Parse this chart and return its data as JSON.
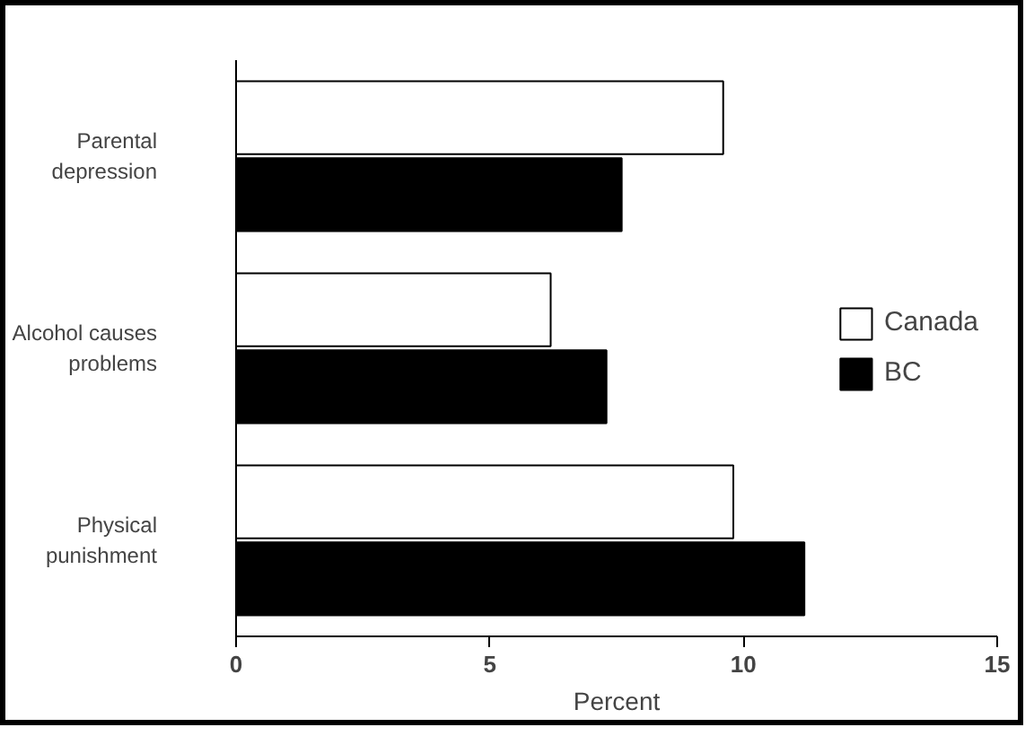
{
  "chart_data": {
    "type": "bar",
    "orientation": "horizontal",
    "xlabel": "Percent",
    "categories": [
      "Parental depression",
      "Alcohol causes problems",
      "Physical punishment"
    ],
    "series": [
      {
        "name": "Canada",
        "color": "#ffffff",
        "values": [
          9.6,
          6.2,
          9.8
        ]
      },
      {
        "name": "BC",
        "color": "#000000",
        "values": [
          7.6,
          7.3,
          11.2
        ]
      }
    ],
    "xlim": [
      0,
      15
    ],
    "xticks": [
      0,
      5,
      10,
      15
    ],
    "grid": false,
    "legend": "right"
  }
}
